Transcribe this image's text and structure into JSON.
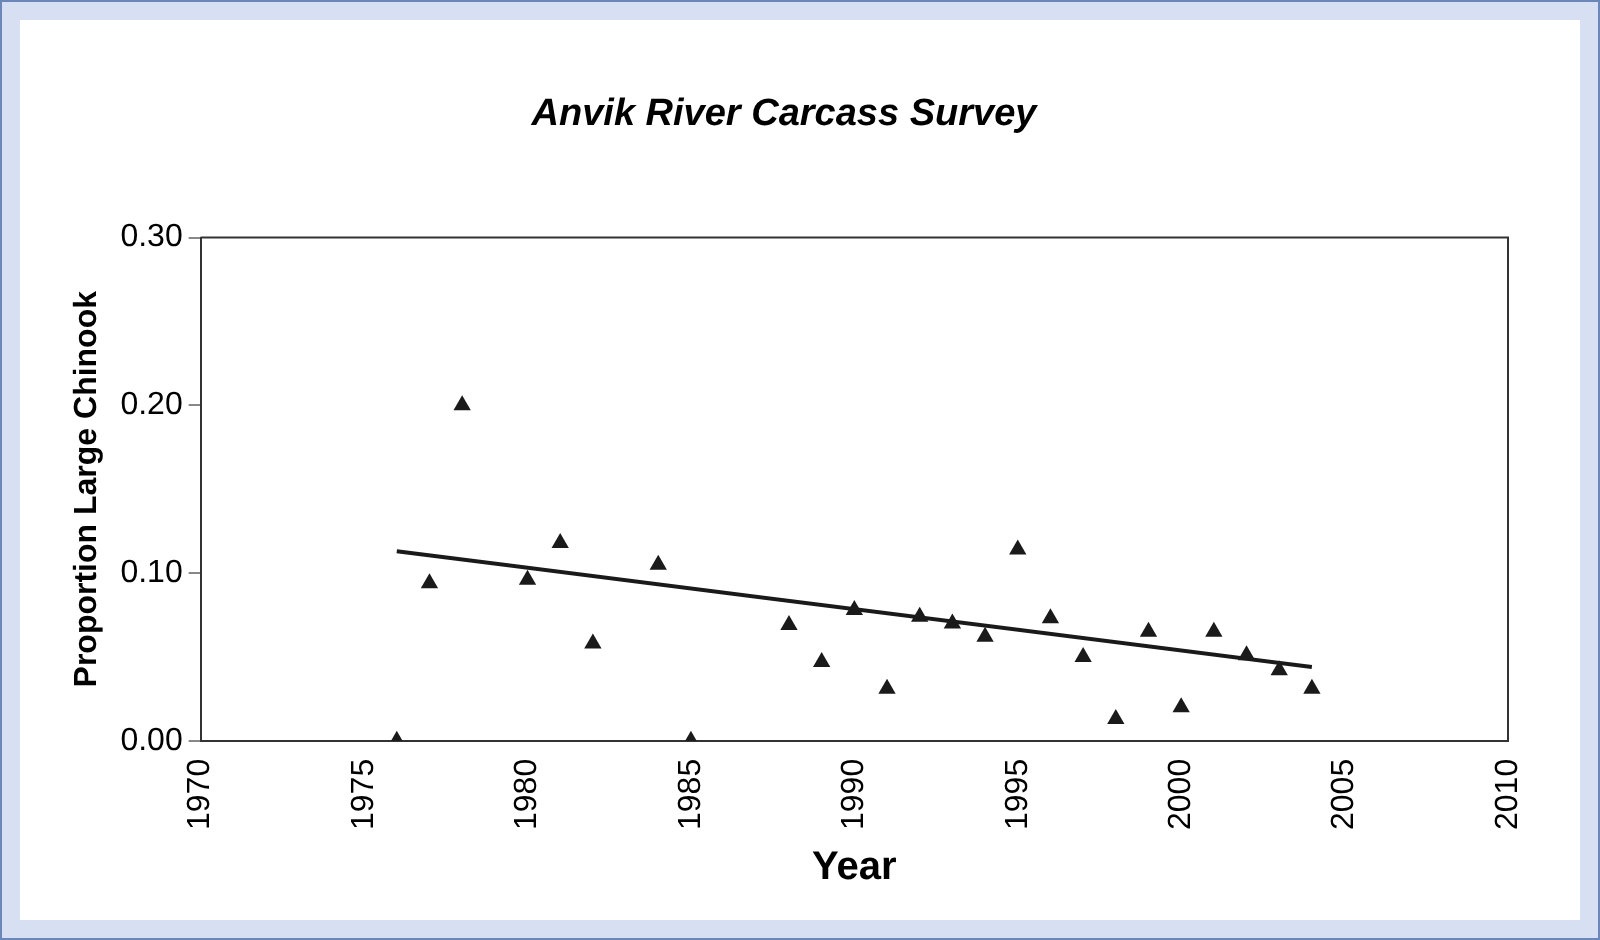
{
  "chart_data": {
    "type": "scatter",
    "title": "Anvik River Carcass Survey",
    "xlabel": "Year",
    "ylabel": "Proportion Large Chinook",
    "x": [
      1976,
      1977,
      1978,
      1980,
      1981,
      1982,
      1984,
      1985,
      1988,
      1989,
      1990,
      1991,
      1992,
      1993,
      1994,
      1995,
      1996,
      1997,
      1998,
      1999,
      2000,
      2001,
      2002,
      2003,
      2004
    ],
    "series": [
      {
        "color": "#1a1a1a",
        "marker": "triangle",
        "values": [
          0,
          0.094,
          0.2,
          0.096,
          0.118,
          0.058,
          0.105,
          0,
          0.069,
          0.047,
          0.078,
          0.031,
          0.074,
          0.07,
          0.062,
          0.114,
          0.073,
          0.05,
          0.013,
          0.065,
          0.02,
          0.065,
          0.051,
          0.042,
          0.031
        ]
      },
      {
        "type": "line",
        "color": "#1a1a1a",
        "marker": "none",
        "line_style": "solid",
        "x": [
          1976,
          2004
        ],
        "values": [
          0.113,
          0.044
        ]
      }
    ],
    "xlim": [
      1970,
      2010
    ],
    "xticks": [
      1970,
      1975,
      1980,
      1985,
      1990,
      1995,
      2000,
      2005,
      2010
    ],
    "ylim": [
      0,
      0.3
    ],
    "yticks": [
      {
        "value": 0,
        "label": "0.00"
      },
      {
        "value": 0.1,
        "label": "0.10"
      },
      {
        "value": 0.2,
        "label": "0.20"
      },
      {
        "value": 0.3,
        "label": "0.30"
      }
    ],
    "grid": false,
    "legend": false
  }
}
